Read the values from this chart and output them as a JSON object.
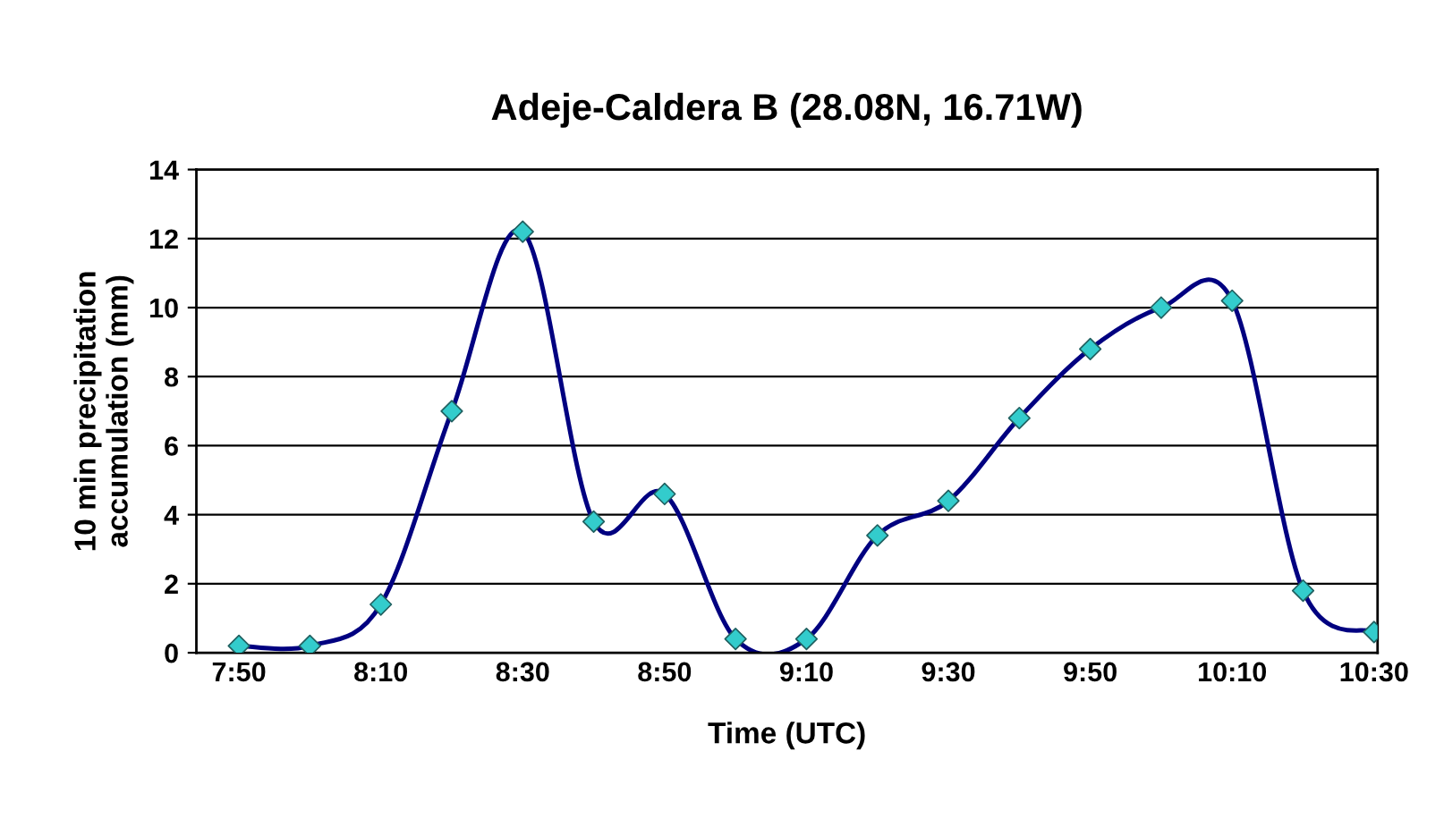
{
  "chart_data": {
    "type": "line",
    "title": "Adeje-Caldera B (28.08N, 16.71W)",
    "xlabel": "Time (UTC)",
    "ylabel": "10 min precipitation\naccumulation (mm)",
    "categories": [
      "7:50",
      null,
      "8:10",
      null,
      "8:30",
      null,
      "8:50",
      null,
      "9:10",
      null,
      "9:30",
      null,
      "9:50",
      null,
      "10:10",
      null,
      "10:30"
    ],
    "series": [
      {
        "color": "#000080",
        "colors": [
          "#33cccc",
          "#33cccc",
          "#33cccc",
          "#33cccc",
          "#33cccc",
          "#33cccc",
          "#33cccc",
          "#33cccc",
          "#33cccc",
          "#33cccc",
          "#33cccc",
          "#33cccc",
          "#33cccc",
          "#33cccc",
          "#33cccc",
          "#33cccc",
          "#33cccc"
        ],
        "values": [
          0.2,
          0.2,
          1.4,
          7.0,
          12.2,
          3.8,
          4.6,
          0.4,
          0.4,
          3.4,
          4.4,
          6.8,
          8.8,
          10.0,
          10.2,
          1.8,
          0.6
        ]
      }
    ],
    "ylim": [
      0,
      14
    ],
    "yticks": [
      0,
      2,
      4,
      6,
      8,
      10,
      12,
      14
    ],
    "grid": "y",
    "marker": "diamond",
    "line_style": "solid",
    "legend": false
  }
}
